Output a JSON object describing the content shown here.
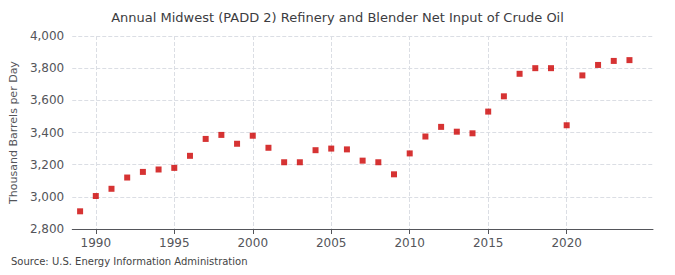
{
  "chart_data": {
    "type": "scatter",
    "title": "Annual Midwest (PADD 2) Refinery and Blender Net Input of Crude Oil",
    "ylabel": "Thousand Barrels per Day",
    "source": "Source: U.S. Energy Information Administration",
    "x": [
      1989,
      1990,
      1991,
      1992,
      1993,
      1994,
      1995,
      1996,
      1997,
      1998,
      1999,
      2000,
      2001,
      2002,
      2003,
      2004,
      2005,
      2006,
      2007,
      2008,
      2009,
      2010,
      2011,
      2012,
      2013,
      2014,
      2015,
      2016,
      2017,
      2018,
      2019,
      2020,
      2021,
      2022,
      2023,
      2024
    ],
    "values": [
      2910,
      3005,
      3050,
      3120,
      3155,
      3170,
      3180,
      3255,
      3360,
      3385,
      3330,
      3380,
      3305,
      3215,
      3215,
      3290,
      3300,
      3295,
      3225,
      3215,
      3140,
      3270,
      3375,
      3435,
      3405,
      3395,
      3530,
      3625,
      3765,
      3800,
      3800,
      3445,
      3755,
      3820,
      3845,
      3850
    ],
    "color": "#cc0000",
    "marker": "square",
    "xlim": [
      1988.5,
      2025.5
    ],
    "xticks": [
      1990,
      1995,
      2000,
      2005,
      2010,
      2015,
      2020
    ],
    "ylim": [
      2800,
      4000
    ],
    "yticks": [
      {
        "value": 2800,
        "label": "2,800"
      },
      {
        "value": 3000,
        "label": "3,000"
      },
      {
        "value": 3200,
        "label": "3,200"
      },
      {
        "value": 3400,
        "label": "3,400"
      },
      {
        "value": 3600,
        "label": "3,600"
      },
      {
        "value": 3800,
        "label": "3,800"
      },
      {
        "value": 4000,
        "label": "4,000"
      }
    ],
    "grid": true
  }
}
